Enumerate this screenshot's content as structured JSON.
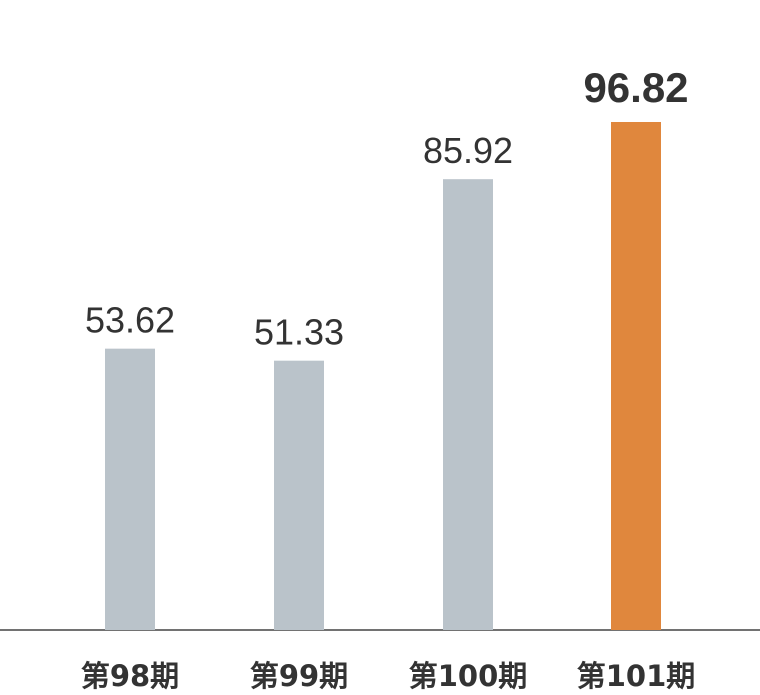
{
  "chart_data": {
    "type": "bar",
    "categories": [
      "第98期",
      "第99期",
      "第100期",
      "第101期"
    ],
    "values": [
      53.62,
      51.33,
      85.92,
      96.82
    ],
    "colors": [
      "#bac3ca",
      "#bac3ca",
      "#bac3ca",
      "#e0873d"
    ]
  }
}
